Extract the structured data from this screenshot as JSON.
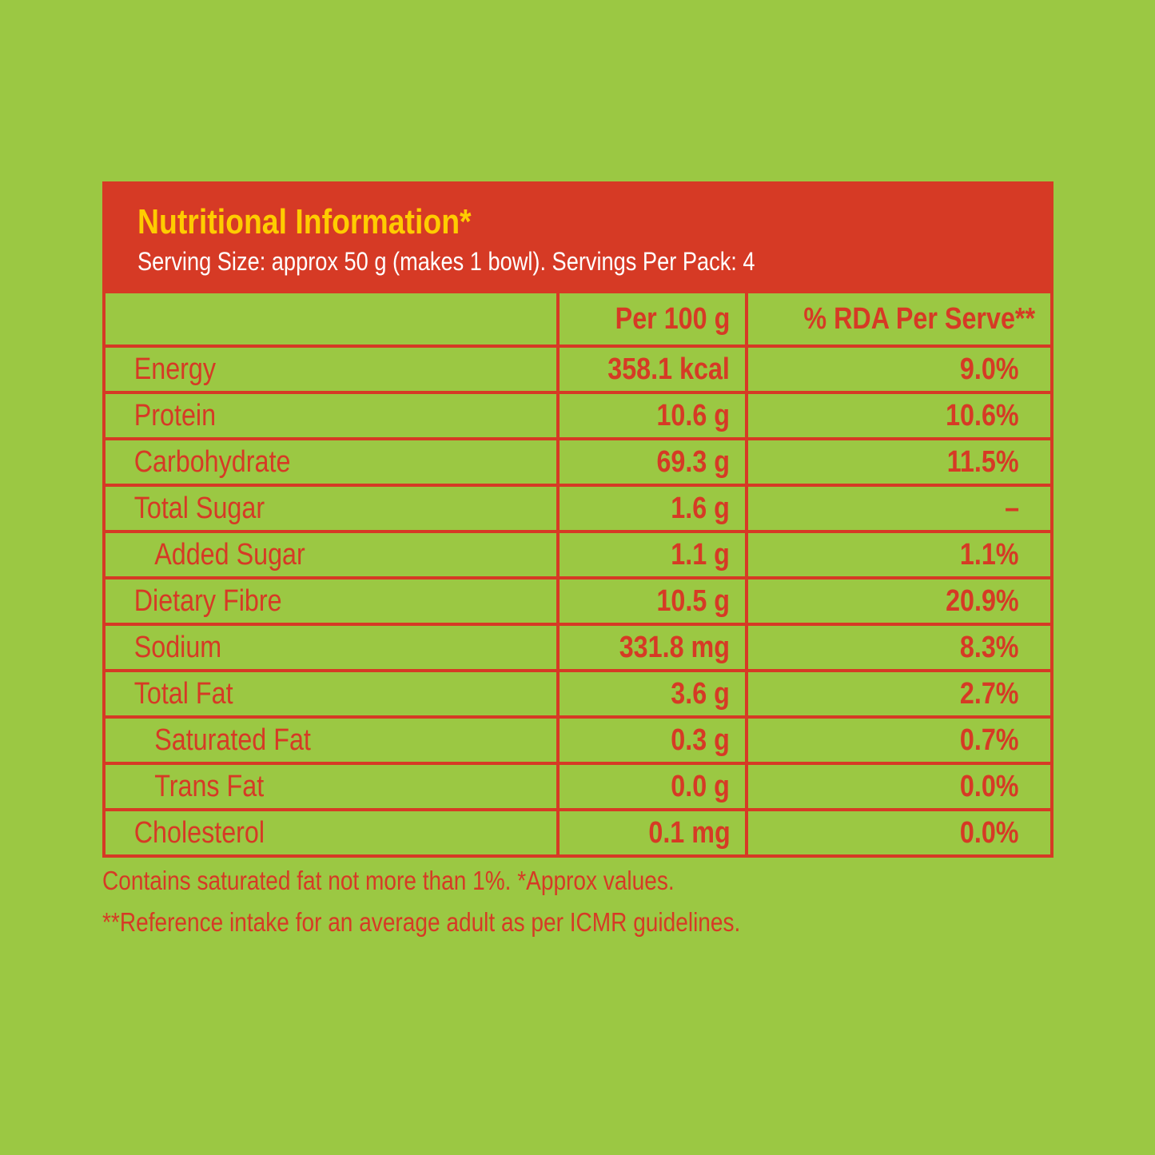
{
  "header": {
    "title": "Nutritional Information*",
    "subtitle": "Serving Size: approx 50 g (makes 1 bowl). Servings Per Pack: 4"
  },
  "table": {
    "columns": [
      "Per 100 g",
      "% RDA Per Serve**"
    ],
    "rows": [
      [
        "Energy",
        "358.1 kcal",
        "9.0%"
      ],
      [
        "Protein",
        "10.6 g",
        "10.6%"
      ],
      [
        "Carbohydrate",
        "69.3 g",
        "11.5%"
      ],
      [
        "Total Sugar",
        "1.6 g",
        "–"
      ],
      [
        "Added Sugar",
        "1.1 g",
        "1.1%"
      ],
      [
        "Dietary Fibre",
        "10.5 g",
        "20.9%"
      ],
      [
        "Sodium",
        "331.8 mg",
        "8.3%"
      ],
      [
        "Total Fat",
        "3.6 g",
        "2.7%"
      ],
      [
        "Saturated Fat",
        "0.3 g",
        "0.7%"
      ],
      [
        "Trans Fat",
        "0.0 g",
        "0.0%"
      ],
      [
        "Cholesterol",
        "0.1 mg",
        "0.0%"
      ]
    ]
  },
  "footnotes": [
    "Contains saturated fat not more than 1%. *Approx values.",
    "**Reference intake for an average adult as per ICMR guidelines."
  ]
}
